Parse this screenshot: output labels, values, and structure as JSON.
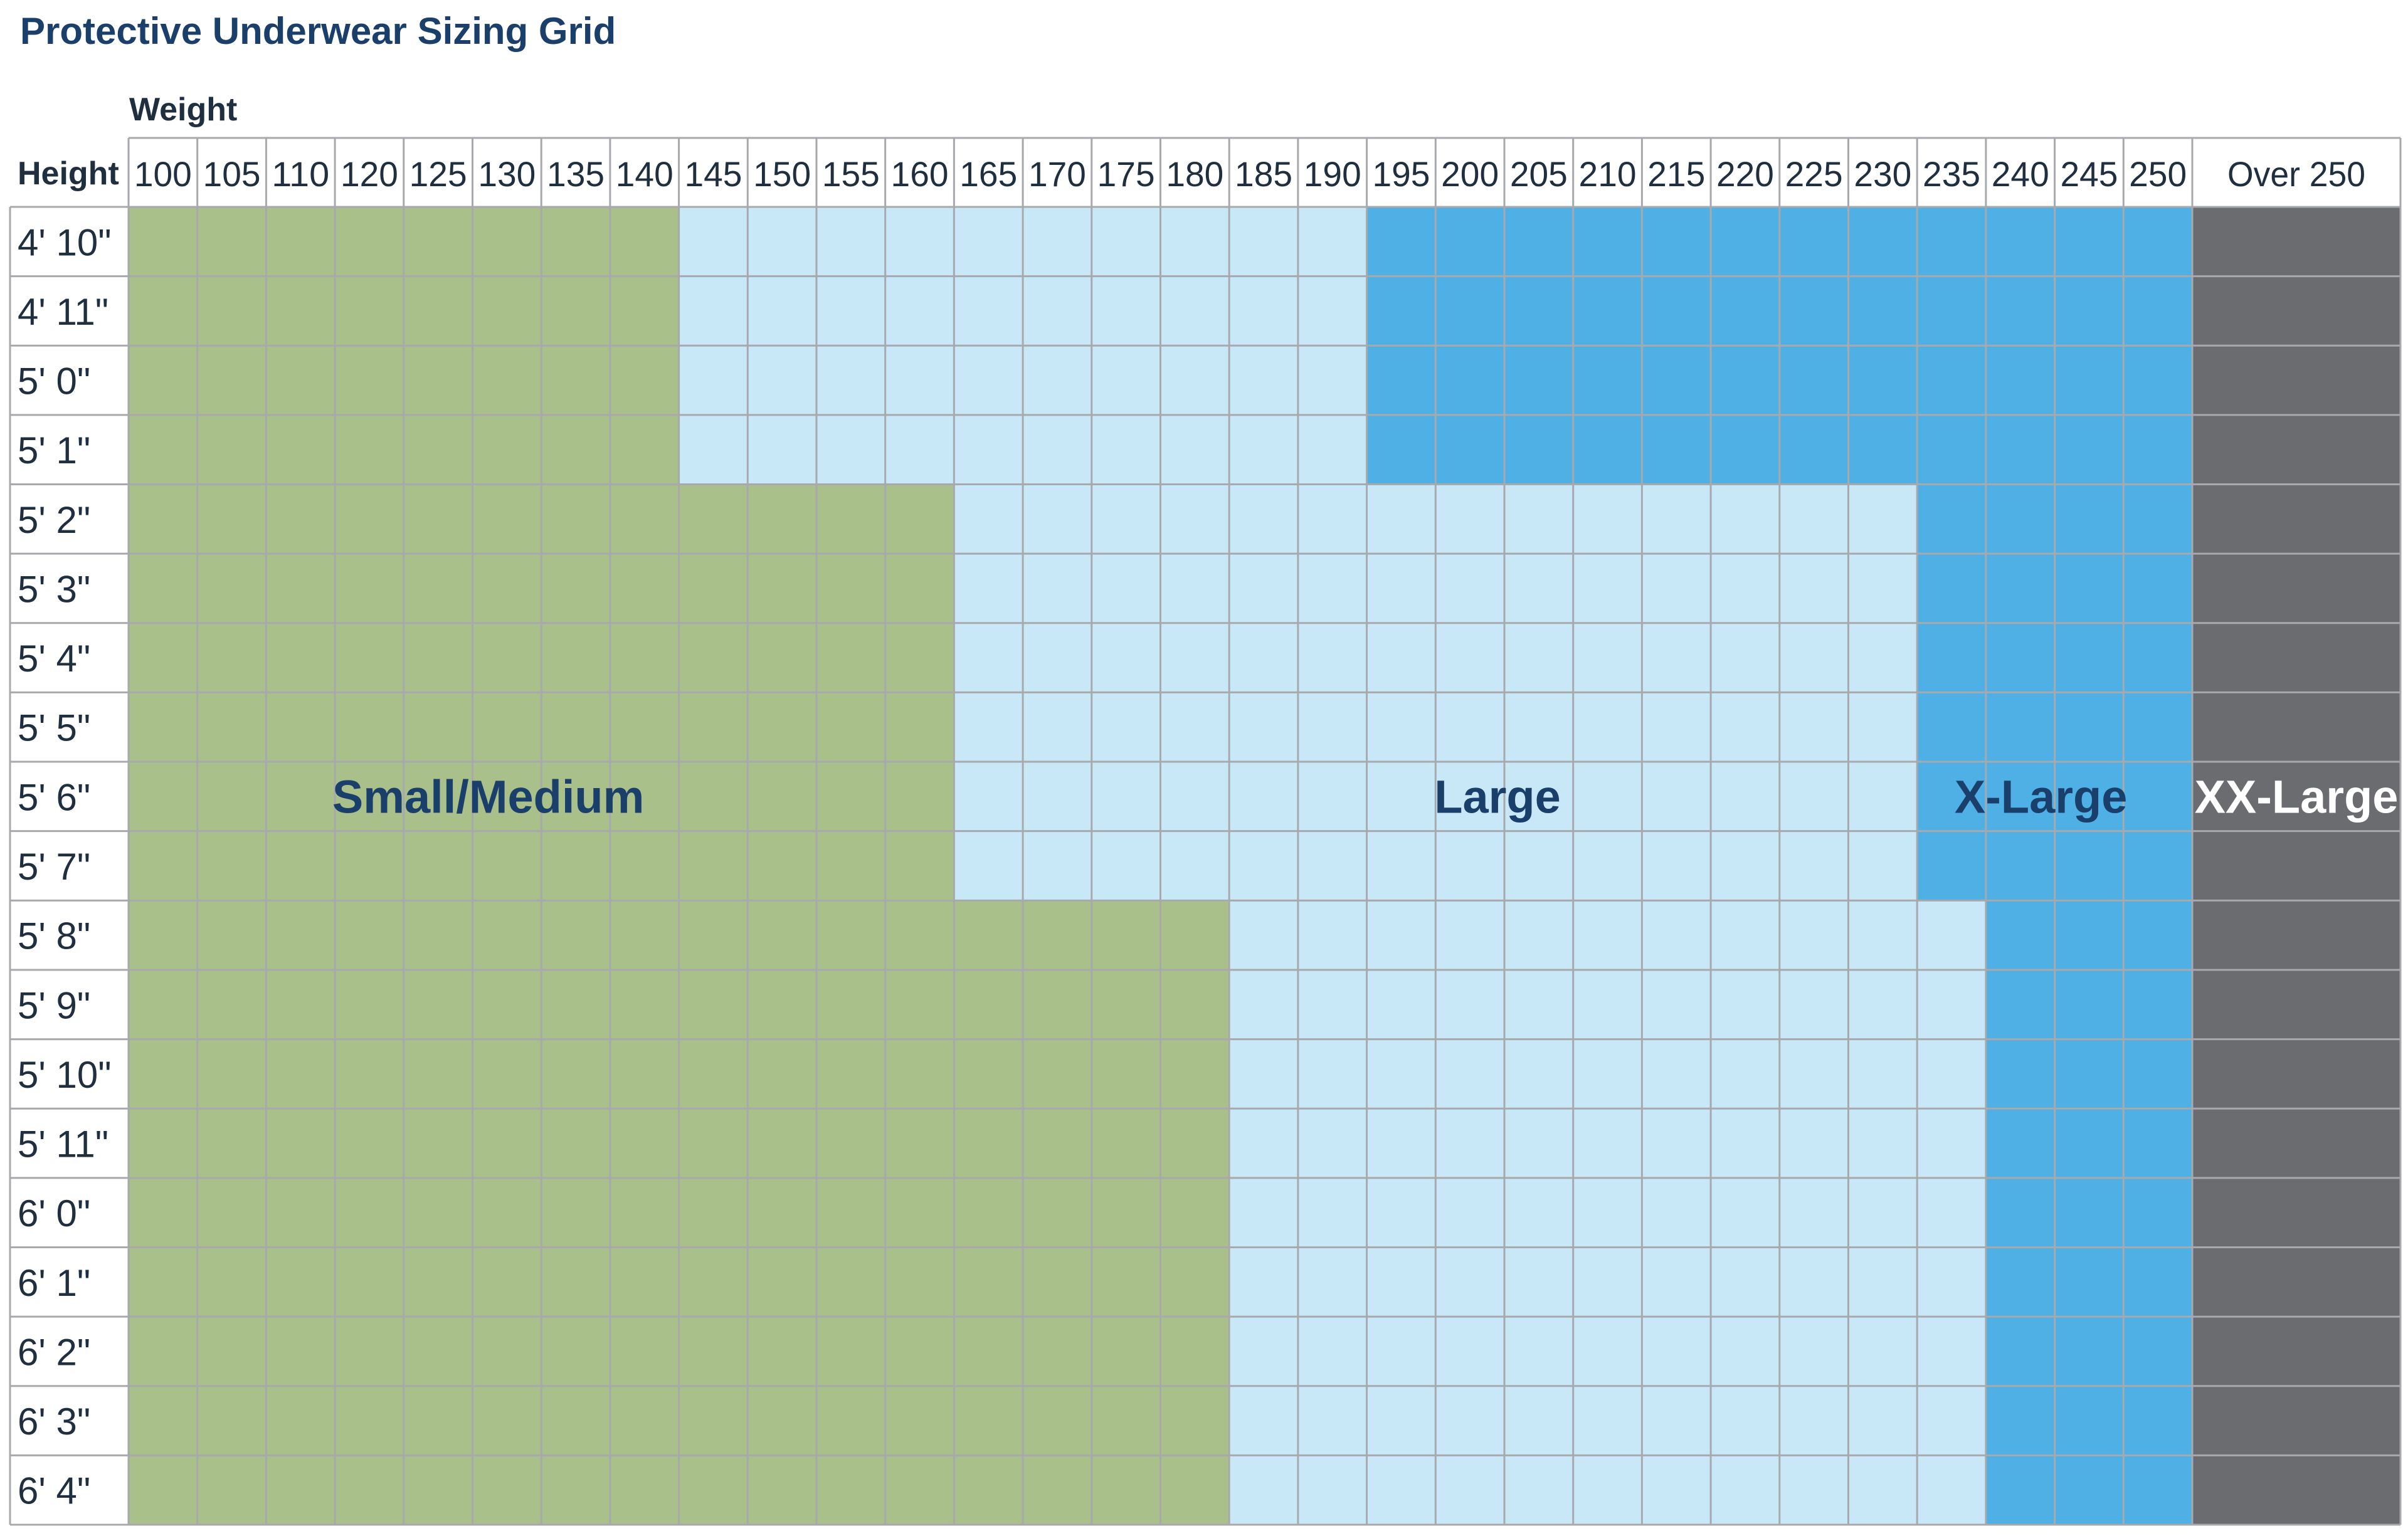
{
  "chart_data": {
    "type": "heatmap",
    "title": "Protective Underwear Sizing Grid",
    "xlabel": "Weight",
    "ylabel": "Height",
    "weights": [
      "100",
      "105",
      "110",
      "120",
      "125",
      "130",
      "135",
      "140",
      "145",
      "150",
      "155",
      "160",
      "165",
      "170",
      "175",
      "180",
      "185",
      "190",
      "195",
      "200",
      "205",
      "210",
      "215",
      "220",
      "225",
      "230",
      "235",
      "240",
      "245",
      "250",
      "Over 250"
    ],
    "heights": [
      "4' 10\"",
      "4' 11\"",
      "5' 0\"",
      "5' 1\"",
      "5' 2\"",
      "5' 3\"",
      "5' 4\"",
      "5' 5\"",
      "5' 6\"",
      "5' 7\"",
      "5' 8\"",
      "5' 9\"",
      "5' 10\"",
      "5' 11\"",
      "6' 0\"",
      "6' 1\"",
      "6' 2\"",
      "6' 3\"",
      "6' 4\""
    ],
    "sizes": [
      {
        "name": "Small/Medium",
        "color": "#a9c08a",
        "text_color": "#1b3f6b"
      },
      {
        "name": "Large",
        "color": "#c8e8f8",
        "text_color": "#1b3f6b"
      },
      {
        "name": "X-Large",
        "color": "#4fb0e6",
        "text_color": "#1b3f6b"
      },
      {
        "name": "XX-Large",
        "color": "#6b6c70",
        "text_color": "#ffffff"
      }
    ],
    "size_ranges": [
      {
        "heights": [
          "4' 10\"",
          "5' 1\""
        ],
        "Small/Medium": [
          "100",
          "140"
        ],
        "Large": [
          "145",
          "190"
        ],
        "X-Large": [
          "195",
          "250"
        ],
        "XX-Large": [
          "Over 250"
        ]
      },
      {
        "heights": [
          "5' 2\"",
          "5' 7\""
        ],
        "Small/Medium": [
          "100",
          "160"
        ],
        "Large": [
          "165",
          "230"
        ],
        "X-Large": [
          "235",
          "250"
        ],
        "XX-Large": [
          "Over 250"
        ]
      },
      {
        "heights": [
          "5' 8\"",
          "6' 4\""
        ],
        "Small/Medium": [
          "100",
          "180"
        ],
        "Large": [
          "185",
          "235"
        ],
        "X-Large": [
          "240",
          "250"
        ],
        "XX-Large": [
          "Over 250"
        ]
      }
    ],
    "grid_color": "#a7a9ac"
  }
}
